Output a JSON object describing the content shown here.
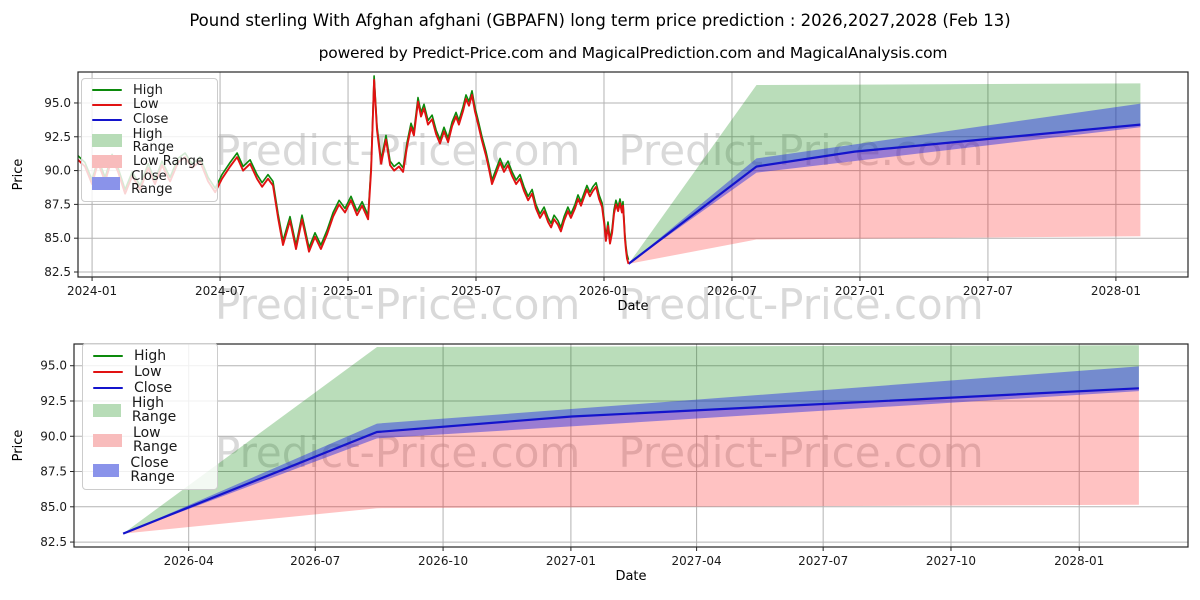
{
  "title": "Pound sterling With Afghan afghani (GBPAFN) long term price prediction : 2026,2027,2028 (Feb 13)",
  "subtitle": "powered by Predict-Price.com and MagicalPrediction.com and MagicalAnalysis.com",
  "watermark": {
    "text": "Predict-Price.com",
    "color": "#d9d9d9"
  },
  "colors": {
    "high_line": "#0c8a0c",
    "low_line": "#e11212",
    "close_line": "#1414cc",
    "high_range_fill": "rgba(0,128,0,0.27)",
    "low_range_fill": "rgba(255,0,0,0.24)",
    "close_range_fill": "rgba(30,40,230,0.45)",
    "grid": "#b3b3b3",
    "spine": "#262626",
    "tick_text": "#1a1a1a"
  },
  "legend": {
    "items": [
      {
        "label": "High",
        "type": "line",
        "color": "#0c8a0c"
      },
      {
        "label": "Low",
        "type": "line",
        "color": "#e11212"
      },
      {
        "label": "Close",
        "type": "line",
        "color": "#1414cc"
      },
      {
        "label": "High Range",
        "type": "patch",
        "color": "#b7dcb7"
      },
      {
        "label": "Low Range",
        "type": "patch",
        "color": "#f8bcbc"
      },
      {
        "label": "Close Range",
        "type": "patch",
        "color": "#8a93ea"
      }
    ]
  },
  "history": {
    "high_offset": 0.3,
    "points": [
      [
        -0.66,
        90.8
      ],
      [
        -0.33,
        90.3
      ],
      [
        0,
        89.0
      ],
      [
        0.28,
        90.6
      ],
      [
        0.61,
        89.2
      ],
      [
        0.94,
        90.9
      ],
      [
        1.22,
        89.9
      ],
      [
        1.55,
        88.3
      ],
      [
        1.88,
        89.6
      ],
      [
        2.25,
        88.6
      ],
      [
        2.63,
        90.2
      ],
      [
        2.95,
        89.0
      ],
      [
        3.28,
        90.4
      ],
      [
        3.66,
        89.2
      ],
      [
        4.03,
        90.6
      ],
      [
        4.36,
        91.0
      ],
      [
        4.69,
        90.2
      ],
      [
        5.06,
        90.7
      ],
      [
        5.44,
        89.2
      ],
      [
        5.77,
        88.4
      ],
      [
        6.09,
        89.4
      ],
      [
        6.47,
        90.3
      ],
      [
        6.8,
        91.0
      ],
      [
        7.08,
        90.0
      ],
      [
        7.41,
        90.5
      ],
      [
        7.73,
        89.4
      ],
      [
        7.97,
        88.8
      ],
      [
        8.25,
        89.4
      ],
      [
        8.48,
        88.9
      ],
      [
        8.72,
        86.5
      ],
      [
        8.95,
        84.5
      ],
      [
        9.28,
        86.3
      ],
      [
        9.56,
        84.2
      ],
      [
        9.84,
        86.4
      ],
      [
        10.17,
        84.0
      ],
      [
        10.45,
        85.1
      ],
      [
        10.73,
        84.2
      ],
      [
        11.02,
        85.3
      ],
      [
        11.3,
        86.6
      ],
      [
        11.58,
        87.5
      ],
      [
        11.86,
        86.9
      ],
      [
        12.14,
        87.8
      ],
      [
        12.42,
        86.7
      ],
      [
        12.66,
        87.4
      ],
      [
        12.94,
        86.4
      ],
      [
        13.08,
        90.0
      ],
      [
        13.22,
        96.7
      ],
      [
        13.36,
        93.0
      ],
      [
        13.55,
        90.5
      ],
      [
        13.78,
        92.3
      ],
      [
        13.97,
        90.4
      ],
      [
        14.16,
        90.0
      ],
      [
        14.39,
        90.3
      ],
      [
        14.58,
        89.9
      ],
      [
        14.77,
        91.8
      ],
      [
        14.95,
        93.2
      ],
      [
        15.09,
        92.6
      ],
      [
        15.28,
        95.1
      ],
      [
        15.42,
        94.0
      ],
      [
        15.56,
        94.6
      ],
      [
        15.75,
        93.4
      ],
      [
        15.94,
        93.8
      ],
      [
        16.13,
        92.7
      ],
      [
        16.31,
        92.0
      ],
      [
        16.5,
        92.9
      ],
      [
        16.69,
        92.1
      ],
      [
        16.88,
        93.3
      ],
      [
        17.06,
        94.0
      ],
      [
        17.2,
        93.4
      ],
      [
        17.39,
        94.4
      ],
      [
        17.53,
        95.3
      ],
      [
        17.67,
        94.8
      ],
      [
        17.81,
        95.6
      ],
      [
        17.95,
        94.4
      ],
      [
        18.09,
        93.5
      ],
      [
        18.28,
        92.2
      ],
      [
        18.47,
        91.1
      ],
      [
        18.61,
        90.1
      ],
      [
        18.75,
        89.0
      ],
      [
        18.94,
        89.8
      ],
      [
        19.13,
        90.6
      ],
      [
        19.31,
        89.9
      ],
      [
        19.5,
        90.4
      ],
      [
        19.69,
        89.6
      ],
      [
        19.88,
        89.0
      ],
      [
        20.06,
        89.4
      ],
      [
        20.25,
        88.5
      ],
      [
        20.44,
        87.8
      ],
      [
        20.63,
        88.3
      ],
      [
        20.81,
        87.2
      ],
      [
        21.0,
        86.5
      ],
      [
        21.19,
        87.0
      ],
      [
        21.38,
        86.2
      ],
      [
        21.52,
        85.8
      ],
      [
        21.66,
        86.4
      ],
      [
        21.84,
        86.0
      ],
      [
        21.98,
        85.5
      ],
      [
        22.13,
        86.3
      ],
      [
        22.31,
        87.0
      ],
      [
        22.45,
        86.5
      ],
      [
        22.64,
        87.2
      ],
      [
        22.78,
        87.9
      ],
      [
        22.92,
        87.4
      ],
      [
        23.06,
        88.0
      ],
      [
        23.2,
        88.6
      ],
      [
        23.34,
        88.1
      ],
      [
        23.48,
        88.5
      ],
      [
        23.63,
        88.8
      ],
      [
        23.77,
        87.9
      ],
      [
        23.91,
        87.3
      ],
      [
        24.0,
        86.2
      ],
      [
        24.09,
        84.8
      ],
      [
        24.19,
        85.9
      ],
      [
        24.28,
        84.6
      ],
      [
        24.38,
        85.4
      ],
      [
        24.47,
        86.8
      ],
      [
        24.56,
        87.5
      ],
      [
        24.66,
        87.0
      ],
      [
        24.75,
        87.6
      ],
      [
        24.84,
        86.9
      ],
      [
        24.89,
        87.4
      ],
      [
        24.94,
        86.2
      ],
      [
        24.98,
        85.0
      ],
      [
        25.03,
        84.1
      ],
      [
        25.08,
        83.5
      ],
      [
        25.15,
        83.1
      ]
    ]
  },
  "prediction": {
    "t": [
      0,
      6,
      24
    ],
    "high_top": [
      83.1,
      96.33,
      96.45
    ],
    "low_bottom": [
      83.1,
      84.9,
      85.15
    ],
    "close_top": [
      83.1,
      90.9,
      94.95
    ],
    "close_bottom": [
      83.1,
      89.85,
      93.2
    ],
    "close_line": {
      "t": [
        0,
        6,
        10.6,
        24
      ],
      "v": [
        83.1,
        90.3,
        91.4,
        93.4
      ]
    }
  },
  "chart_data": [
    {
      "type": "line",
      "name": "main-chart",
      "xlabel": "Date",
      "ylabel": "Price",
      "ylim": [
        82.13,
        97.29
      ],
      "xlim": [
        -0.66,
        51.38
      ],
      "y_ticks": [
        "82.5",
        "85.0",
        "87.5",
        "90.0",
        "92.5",
        "95.0"
      ],
      "x_ticks": [
        {
          "m": 0,
          "label": "2024-01"
        },
        {
          "m": 6,
          "label": "2024-07"
        },
        {
          "m": 12,
          "label": "2025-01"
        },
        {
          "m": 18,
          "label": "2025-07"
        },
        {
          "m": 24,
          "label": "2026-01"
        },
        {
          "m": 30,
          "label": "2026-07"
        },
        {
          "m": 36,
          "label": "2027-01"
        },
        {
          "m": 42,
          "label": "2027-07"
        },
        {
          "m": 48,
          "label": "2028-01"
        }
      ],
      "show_history": true,
      "prediction_offset": 25.15
    },
    {
      "type": "line",
      "name": "prediction-chart",
      "xlabel": "Date",
      "ylabel": "Price",
      "ylim": [
        82.15,
        96.54
      ],
      "xlim": [
        -1.16,
        25.16
      ],
      "y_ticks": [
        "82.5",
        "85.0",
        "87.5",
        "90.0",
        "92.5",
        "95.0"
      ],
      "x_ticks": [
        {
          "m": 1.55,
          "label": "2026-04"
        },
        {
          "m": 4.54,
          "label": "2026-07"
        },
        {
          "m": 7.56,
          "label": "2026-10"
        },
        {
          "m": 10.58,
          "label": "2027-01"
        },
        {
          "m": 13.55,
          "label": "2027-04"
        },
        {
          "m": 16.54,
          "label": "2027-07"
        },
        {
          "m": 19.56,
          "label": "2027-10"
        },
        {
          "m": 22.59,
          "label": "2028-01"
        }
      ],
      "show_history": false,
      "prediction_offset": 0
    }
  ]
}
